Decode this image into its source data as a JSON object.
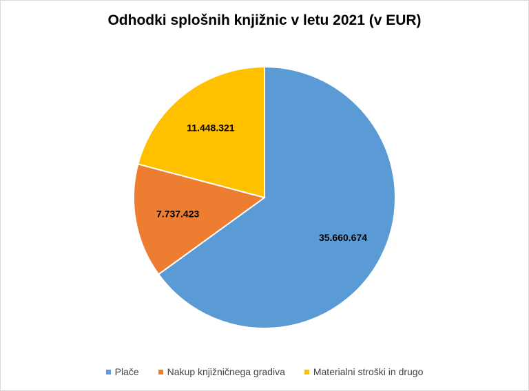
{
  "chart_data": {
    "type": "pie",
    "title": "Odhodki splošnih knjižnic v letu 2021 (v EUR)",
    "slices": [
      {
        "label": "Plače",
        "value": 35660674,
        "value_label": "35.660.674",
        "color": "#5B9BD5"
      },
      {
        "label": "Nakup knjižničnega gradiva",
        "value": 7737423,
        "value_label": "7.737.423",
        "color": "#ED7D31"
      },
      {
        "label": "Materialni stroški in drugo",
        "value": 11448321,
        "value_label": "11.448.321",
        "color": "#FFC000"
      }
    ],
    "legend_position": "bottom"
  }
}
